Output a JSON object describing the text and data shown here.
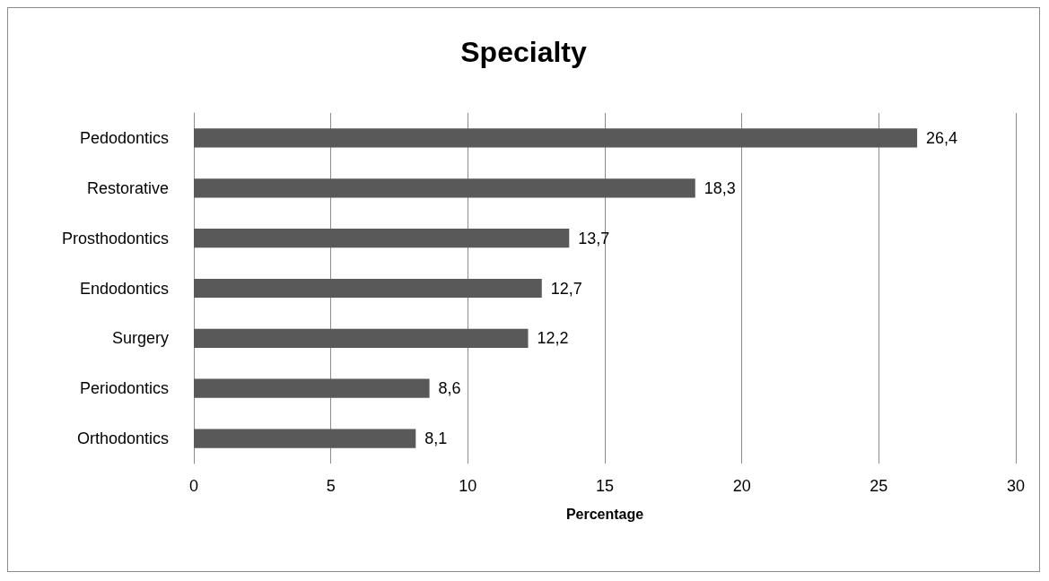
{
  "chart_data": {
    "type": "bar",
    "title": "Specialty",
    "xlabel": "Percentage",
    "orientation": "horizontal",
    "categories": [
      "Pedodontics",
      "Restorative",
      "Prosthodontics",
      "Endodontics",
      "Surgery",
      "Periodontics",
      "Orthodontics"
    ],
    "values": [
      26.4,
      18.3,
      13.7,
      12.7,
      12.2,
      8.6,
      8.1
    ],
    "value_labels": [
      "26,4",
      "18,3",
      "13,7",
      "12,7",
      "12,2",
      "8,6",
      "8,1"
    ],
    "color": "#595959",
    "xlim": [
      0,
      30
    ],
    "xticks": [
      0,
      5,
      10,
      15,
      20,
      25,
      30
    ],
    "grid": "x"
  }
}
